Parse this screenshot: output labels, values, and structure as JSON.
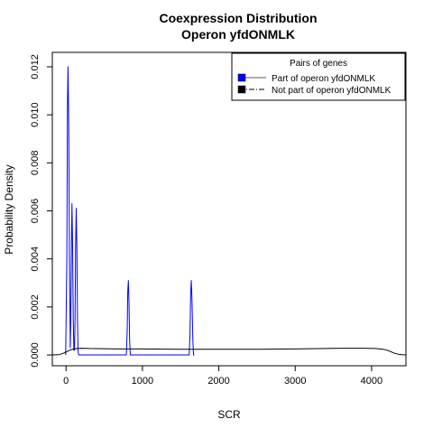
{
  "chart_data": {
    "type": "line",
    "title_line1": "Coexpression Distribution",
    "title_line2": "Operon yfdONMLK",
    "xlabel": "SCR",
    "ylabel": "Probability Density",
    "xlim": [
      -180,
      4450
    ],
    "ylim": [
      -0.00045,
      0.0126
    ],
    "x_ticks": [
      0,
      1000,
      2000,
      3000,
      4000
    ],
    "x_tick_labels": [
      "0",
      "1000",
      "2000",
      "3000",
      "4000"
    ],
    "y_ticks": [
      0.0,
      0.002,
      0.004,
      0.006,
      0.008,
      0.01,
      0.012
    ],
    "y_tick_labels": [
      "0.000",
      "0.002",
      "0.004",
      "0.006",
      "0.008",
      "0.010",
      "0.012"
    ],
    "grid": false,
    "legend": {
      "title": "Pairs of genes",
      "position": "top-right",
      "entries": [
        {
          "label": "Part of operon yfdONMLK",
          "color": "#0000ff",
          "line_style": "solid"
        },
        {
          "label": "Not part of operon yfdONMLK",
          "color": "#000000",
          "line_style": "dashdot"
        }
      ]
    },
    "series": [
      {
        "name": "Part of operon yfdONMLK",
        "color": "#0000ff",
        "x": [
          -5,
          10,
          18,
          26,
          35,
          45,
          55,
          62,
          70,
          78,
          86,
          94,
          102,
          110,
          118,
          125,
          133,
          141,
          149,
          157,
          164,
          172,
          180,
          190,
          200,
          210,
          780,
          790,
          800,
          808,
          816,
          824,
          832,
          842,
          850,
          1600,
          1612,
          1622,
          1632,
          1640,
          1650,
          1660,
          1668,
          1680
        ],
        "y": [
          0.0,
          0.004,
          0.0105,
          0.012,
          0.0095,
          0.004,
          0.0003,
          0.0015,
          0.0045,
          0.0063,
          0.0045,
          0.0015,
          0.0002,
          0.0002,
          0.0015,
          0.0045,
          0.0061,
          0.0045,
          0.0015,
          0.0002,
          0.0,
          0.0,
          0.0,
          0.0,
          0.0,
          0.0,
          0.0,
          0.0,
          0.001,
          0.0026,
          0.0031,
          0.0022,
          0.0006,
          0.0,
          0.0,
          0.0,
          0.0,
          0.0008,
          0.0026,
          0.0031,
          0.0022,
          0.0006,
          0.0,
          0.0
        ]
      },
      {
        "name": "Not part of operon yfdONMLK",
        "color": "#000000",
        "x": [
          -180,
          -100,
          -50,
          0,
          50,
          100,
          150,
          200,
          300,
          500,
          700,
          1000,
          1500,
          2000,
          2500,
          3000,
          3400,
          3700,
          3900,
          4050,
          4150,
          4200,
          4250,
          4300,
          4350,
          4400,
          4450
        ],
        "y": [
          0.0,
          1e-05,
          5e-05,
          0.00012,
          0.0002,
          0.00025,
          0.00027,
          0.00028,
          0.00027,
          0.00026,
          0.00025,
          0.00025,
          0.00024,
          0.00024,
          0.00024,
          0.00025,
          0.00027,
          0.00028,
          0.00028,
          0.00027,
          0.00024,
          0.0002,
          0.00014,
          7e-05,
          3e-05,
          1e-05,
          0.0
        ]
      }
    ]
  }
}
